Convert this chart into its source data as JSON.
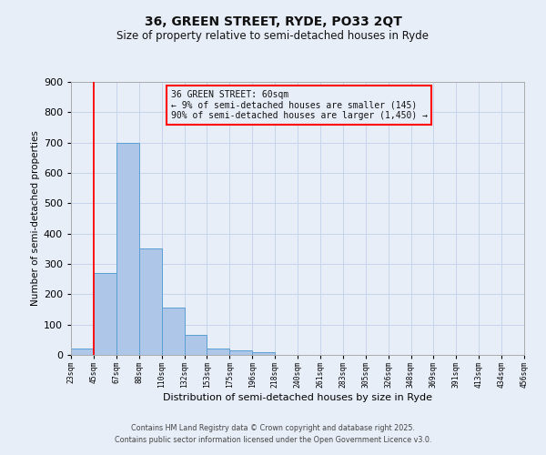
{
  "title": "36, GREEN STREET, RYDE, PO33 2QT",
  "subtitle": "Size of property relative to semi-detached houses in Ryde",
  "xlabel": "Distribution of semi-detached houses by size in Ryde",
  "ylabel": "Number of semi-detached properties",
  "bar_values": [
    20,
    270,
    700,
    350,
    155,
    65,
    22,
    15,
    8,
    0,
    0,
    0,
    0,
    0,
    0,
    0,
    0,
    0,
    0,
    0
  ],
  "bar_labels": [
    "23sqm",
    "45sqm",
    "67sqm",
    "88sqm",
    "110sqm",
    "132sqm",
    "153sqm",
    "175sqm",
    "196sqm",
    "218sqm",
    "240sqm",
    "261sqm",
    "283sqm",
    "305sqm",
    "326sqm",
    "348sqm",
    "369sqm",
    "391sqm",
    "413sqm",
    "434sqm",
    "456sqm"
  ],
  "bar_color": "#aec6e8",
  "bar_edge_color": "#5a9fd4",
  "ylim": [
    0,
    900
  ],
  "yticks": [
    0,
    100,
    200,
    300,
    400,
    500,
    600,
    700,
    800,
    900
  ],
  "red_line_x": 1.0,
  "annotation_title": "36 GREEN STREET: 60sqm",
  "annotation_line1": "← 9% of semi-detached houses are smaller (145)",
  "annotation_line2": "90% of semi-detached houses are larger (1,450) →",
  "footer_line1": "Contains HM Land Registry data © Crown copyright and database right 2025.",
  "footer_line2": "Contains public sector information licensed under the Open Government Licence v3.0.",
  "background_color": "#e8eef8",
  "grid_color": "#c8d4ec"
}
